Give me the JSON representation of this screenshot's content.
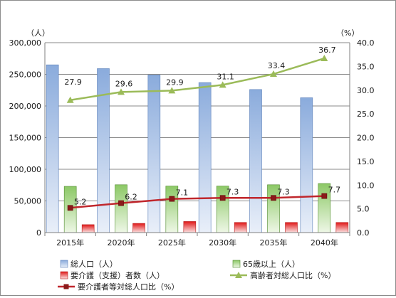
{
  "chart_data": {
    "type": "bar",
    "categories": [
      "2015年",
      "2020年",
      "2025年",
      "2030年",
      "2035年",
      "2040年"
    ],
    "y_left": {
      "unit": "（人）",
      "ylim": [
        0,
        300000
      ],
      "ticks": [
        "0",
        "50,000",
        "100,000",
        "150,000",
        "200,000",
        "250,000",
        "300,000"
      ]
    },
    "y_right": {
      "unit": "（%）",
      "ylim": [
        0,
        40
      ],
      "ticks": [
        "0.0",
        "5.0",
        "10.0",
        "15.0",
        "20.0",
        "25.0",
        "30.0",
        "35.0",
        "40.0"
      ]
    },
    "bars": [
      {
        "name": "総人口（人）",
        "values": [
          265000,
          259000,
          249000,
          237000,
          226000,
          213000
        ],
        "color": "#9bb8e4"
      },
      {
        "name": "65歳以上（人）",
        "values": [
          73000,
          75500,
          73500,
          73500,
          75500,
          77500
        ],
        "color": "#9bd27a"
      },
      {
        "name": "要介護（支援）者数（人）",
        "values": [
          12500,
          14500,
          17500,
          16000,
          16000,
          16000
        ],
        "color": "#e83a3a"
      }
    ],
    "lines": [
      {
        "name": "高齢者対総人口比（%）",
        "values": [
          27.9,
          29.6,
          29.9,
          31.1,
          33.4,
          36.7
        ],
        "labels": [
          "27.9",
          "29.6",
          "29.9",
          "31.1",
          "33.4",
          "36.7"
        ],
        "color": "#9bbb59",
        "marker": "triangle"
      },
      {
        "name": "要介護者等対総人口比（%）",
        "values": [
          5.2,
          6.2,
          7.1,
          7.3,
          7.3,
          7.7
        ],
        "labels": [
          "5.2",
          "6.2",
          "7.1",
          "7.3",
          "7.3",
          "7.7"
        ],
        "color": "#c0272d",
        "marker": "square"
      }
    ],
    "grid": true,
    "legend": "bottom"
  }
}
